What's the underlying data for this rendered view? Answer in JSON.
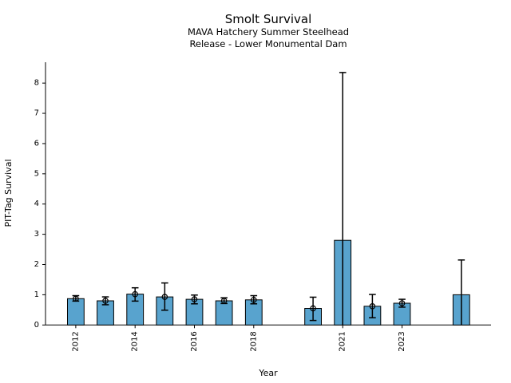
{
  "chart_data": {
    "type": "bar",
    "title": "Smolt Survival",
    "subtitle1": "MAVA Hatchery Summer Steelhead",
    "subtitle2": "Release - Lower Monumental Dam",
    "xlabel": "Year",
    "ylabel": "PIT-Tag Survival",
    "xlim": [
      2010.98,
      2026.0
    ],
    "ylim": [
      0,
      8.69
    ],
    "xticks": [
      2012,
      2014,
      2016,
      2018,
      2021,
      2023
    ],
    "yticks": [
      0,
      1,
      2,
      3,
      4,
      5,
      6,
      7,
      8
    ],
    "grid": false,
    "legend": false,
    "bar_color": "#58A3CE",
    "bar_edge_color": "#000000",
    "error_color": "#000000",
    "bar_width_years": 0.56,
    "points": [
      {
        "year": 2012,
        "value": 0.87,
        "err_lo": 0.79,
        "err_hi": 0.97,
        "marker": true
      },
      {
        "year": 2013,
        "value": 0.8,
        "err_lo": 0.67,
        "err_hi": 0.93,
        "marker": true
      },
      {
        "year": 2014,
        "value": 1.02,
        "err_lo": 0.79,
        "err_hi": 1.23,
        "marker": true
      },
      {
        "year": 2015,
        "value": 0.93,
        "err_lo": 0.49,
        "err_hi": 1.39,
        "marker": true
      },
      {
        "year": 2016,
        "value": 0.85,
        "err_lo": 0.7,
        "err_hi": 0.99,
        "marker": true
      },
      {
        "year": 2017,
        "value": 0.8,
        "err_lo": 0.71,
        "err_hi": 0.9,
        "marker": true
      },
      {
        "year": 2018,
        "value": 0.83,
        "err_lo": 0.7,
        "err_hi": 0.97,
        "marker": true
      },
      {
        "year": 2020,
        "value": 0.55,
        "err_lo": 0.15,
        "err_hi": 0.92,
        "marker": true
      },
      {
        "year": 2021,
        "value": 2.8,
        "err_lo": 0.0,
        "err_hi": 8.35,
        "marker": false
      },
      {
        "year": 2022,
        "value": 0.62,
        "err_lo": 0.24,
        "err_hi": 1.01,
        "marker": true
      },
      {
        "year": 2023,
        "value": 0.72,
        "err_lo": 0.59,
        "err_hi": 0.85,
        "marker": true
      },
      {
        "year": 2025,
        "value": 1.0,
        "err_lo": 0.0,
        "err_hi": 2.15,
        "marker": false
      }
    ]
  }
}
